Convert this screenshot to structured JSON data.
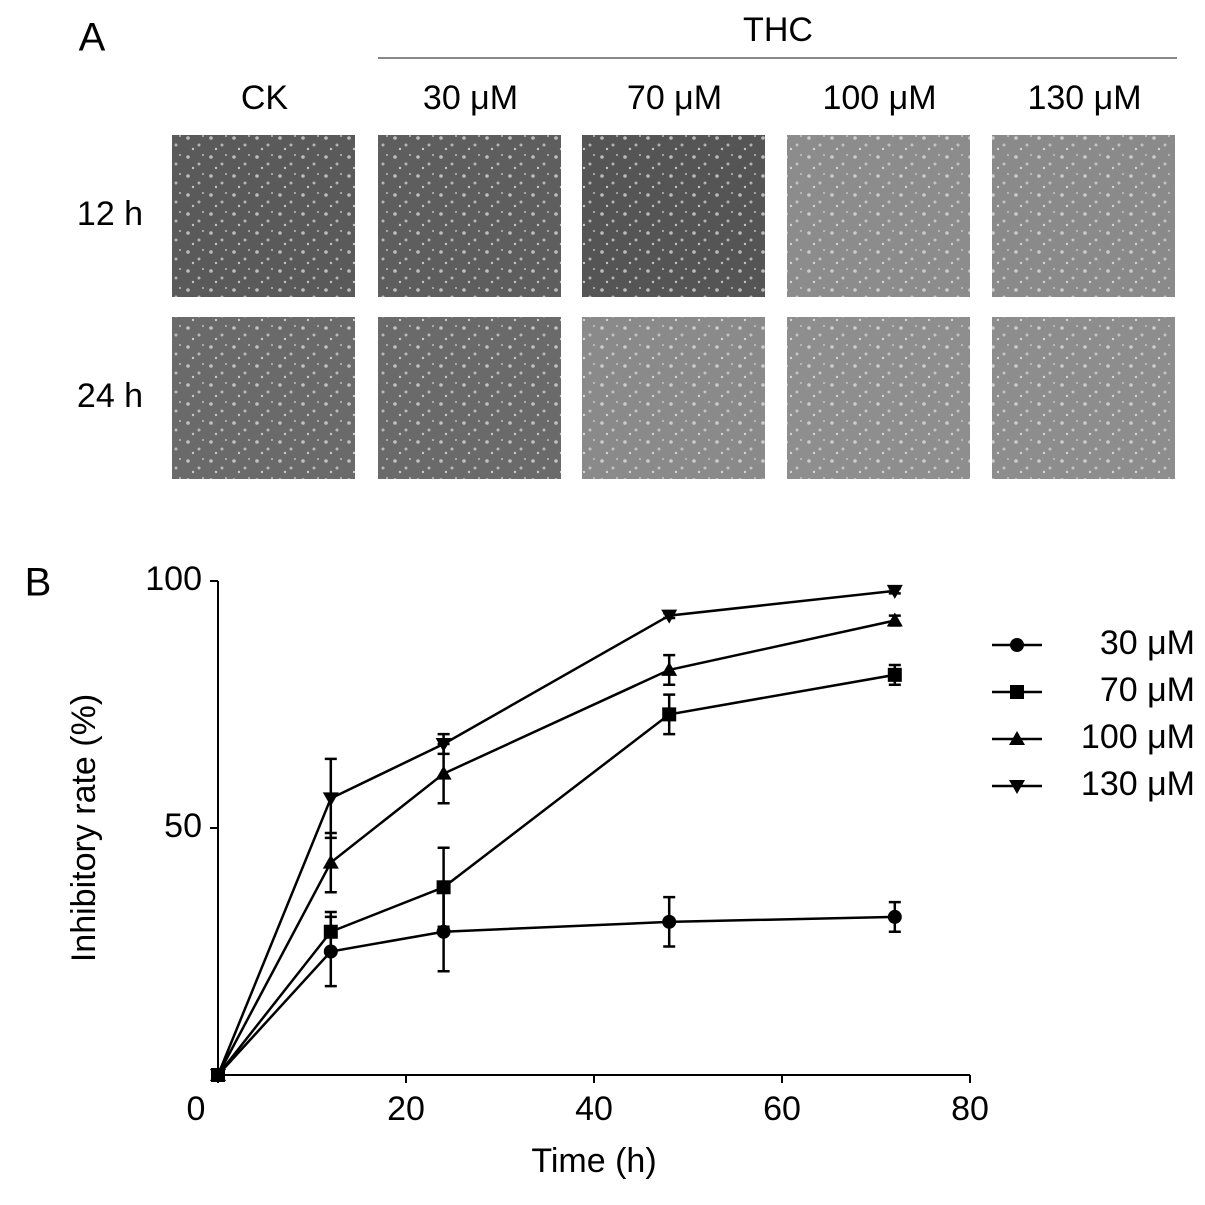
{
  "panel_a": {
    "label": "A",
    "group_label": "THC",
    "columns": [
      "CK",
      "30 μM",
      "70 μM",
      "100 μM",
      "130 μM"
    ],
    "rows": [
      "12 h",
      "24 h"
    ]
  },
  "chart_data": {
    "type": "line",
    "panel_label": "B",
    "x_label": "Time (h)",
    "y_label": "Inhibitory rate (%)",
    "x": [
      0,
      12,
      24,
      48,
      72
    ],
    "series": [
      {
        "name": "30 μM",
        "marker": "circle",
        "color": "#000000",
        "values": [
          0,
          25,
          29,
          31,
          32
        ],
        "errors": [
          null,
          7,
          8,
          5,
          3
        ]
      },
      {
        "name": "70 μM",
        "marker": "square",
        "color": "#000000",
        "values": [
          0,
          29,
          38,
          73,
          81
        ],
        "errors": [
          null,
          4,
          8,
          4,
          2
        ]
      },
      {
        "name": "100 μM",
        "marker": "triangle-up",
        "color": "#000000",
        "values": [
          0,
          43,
          61,
          82,
          92
        ],
        "errors": [
          null,
          6,
          6,
          3,
          1
        ]
      },
      {
        "name": "130 μM",
        "marker": "triangle-down",
        "color": "#000000",
        "values": [
          0,
          56,
          67,
          93,
          98
        ],
        "errors": [
          null,
          8,
          2,
          0.5,
          0.5
        ]
      }
    ],
    "xlim": [
      0,
      80
    ],
    "xticks": [
      0,
      20,
      40,
      60,
      80
    ],
    "ylim": [
      0,
      100
    ],
    "yticks": [
      50,
      100
    ],
    "legend": "right"
  }
}
